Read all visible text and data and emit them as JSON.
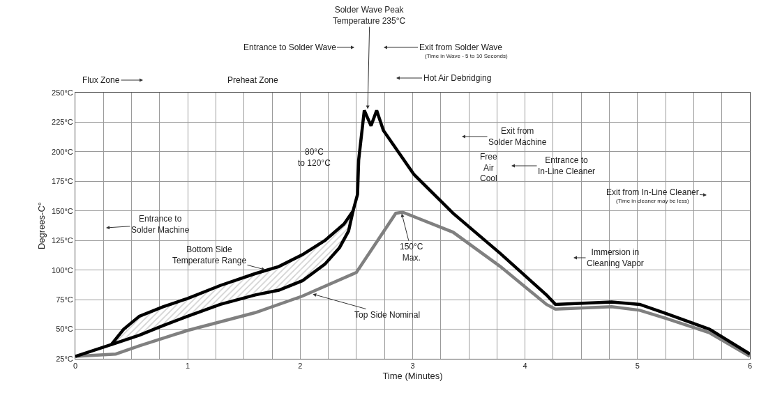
{
  "chart_data": {
    "type": "line",
    "xlabel": "Time (Minutes)",
    "ylabel": "Degrees-C°",
    "xlim": [
      0,
      6
    ],
    "ylim": [
      25,
      250
    ],
    "xticks": [
      0,
      {
        "value": 0.25,
        "label": null
      },
      {
        "value": 0.5,
        "label": null
      },
      {
        "value": 0.75,
        "label": null
      },
      1,
      {
        "value": 1.25,
        "label": null
      },
      {
        "value": 1.5,
        "label": null
      },
      {
        "value": 1.75,
        "label": null
      },
      2,
      {
        "value": 2.25,
        "label": null
      },
      {
        "value": 2.5,
        "label": null
      },
      {
        "value": 2.75,
        "label": null
      },
      3,
      {
        "value": 3.25,
        "label": null
      },
      {
        "value": 3.5,
        "label": null
      },
      {
        "value": 3.75,
        "label": null
      },
      4,
      {
        "value": 4.25,
        "label": null
      },
      {
        "value": 4.5,
        "label": null
      },
      {
        "value": 4.75,
        "label": null
      },
      5,
      {
        "value": 5.25,
        "label": null
      },
      {
        "value": 5.5,
        "label": null
      },
      {
        "value": 5.75,
        "label": null
      },
      6
    ],
    "yticks": [
      {
        "value": 25,
        "label": "25°C"
      },
      {
        "value": 50,
        "label": "50°C"
      },
      {
        "value": 75,
        "label": "75°C"
      },
      {
        "value": 100,
        "label": "100°C"
      },
      {
        "value": 125,
        "label": "125°C"
      },
      {
        "value": 150,
        "label": "150°C"
      },
      {
        "value": 175,
        "label": "175°C"
      },
      {
        "value": 200,
        "label": "200°C"
      },
      {
        "value": 225,
        "label": "225°C"
      },
      {
        "value": 250,
        "label": "250°C"
      }
    ],
    "grid": true,
    "series": [
      {
        "color": "#808080",
        "x": [
          0,
          0.36,
          0.57,
          1.0,
          1.6,
          2.02,
          2.5,
          2.85,
          2.91,
          3.36,
          3.78,
          4.19,
          4.27,
          4.77,
          5.02,
          5.26,
          5.64,
          6.0
        ],
        "values": [
          27,
          29,
          36,
          49,
          64,
          78,
          98,
          148,
          149,
          132,
          103,
          71,
          67,
          69,
          66,
          59,
          47,
          27
        ]
      },
      {
        "color": "#000000",
        "x": [
          0.32,
          0.57,
          0.78,
          1.0,
          1.29,
          1.6,
          1.81,
          2.02,
          2.22,
          2.35,
          2.43,
          2.47
        ],
        "values": [
          37,
          45,
          53,
          61,
          71,
          79,
          83,
          91,
          105,
          119,
          133,
          150
        ],
        "lower": [
          37,
          45,
          53,
          61,
          71,
          79,
          83,
          91,
          105,
          119,
          133,
          150
        ],
        "upper": [
          37,
          61,
          69,
          76,
          87,
          97,
          103,
          113,
          125,
          135,
          144,
          150
        ]
      },
      {
        "color": "#000000",
        "x": [
          0,
          0.32,
          0.43,
          0.57,
          0.78,
          1.0,
          1.29,
          1.6,
          1.81,
          2.02,
          2.22,
          2.39,
          2.47,
          2.51,
          2.52,
          2.57,
          2.63,
          2.68,
          2.74,
          3.01,
          3.36,
          3.78,
          4.19,
          4.27,
          4.77,
          5.02,
          5.26,
          5.64,
          6.0
        ],
        "values": [
          27,
          37,
          50,
          61,
          69,
          76,
          87,
          97,
          103,
          113,
          125,
          139,
          150,
          164,
          193,
          235,
          222,
          235,
          218,
          181,
          148,
          114,
          79,
          71,
          73,
          71,
          63,
          50,
          29
        ]
      }
    ],
    "annotations": [
      "Flux Zone",
      "Preheat Zone",
      "Entrance to Solder Wave",
      "Exit from Solder Wave",
      "(Time in Wave - 5 to 10 Seconds)",
      "Hot Air Debridging",
      {
        "text": "Solder Wave Peak\nTemperature 235°C",
        "x": 2.6,
        "y": 235
      },
      "Entrance to\nSolder Machine",
      "80°C\nto 120°C",
      {
        "text": "Bottom Side\nTemperature Range",
        "x": 1.7,
        "y": 100
      },
      {
        "text": "150°C\nMax.",
        "x": 2.9,
        "y": 149
      },
      {
        "text": "Top Side Nominal",
        "x": 2.1,
        "y": 80
      },
      "Exit from\nSolder Machine",
      "Free\nAir\nCool",
      "Entrance to\nIn-Line Cleaner",
      "Exit from In-Line Cleaner",
      "(Time in cleaner may be less)",
      "Immersion in\nCleaning Vapor"
    ]
  }
}
